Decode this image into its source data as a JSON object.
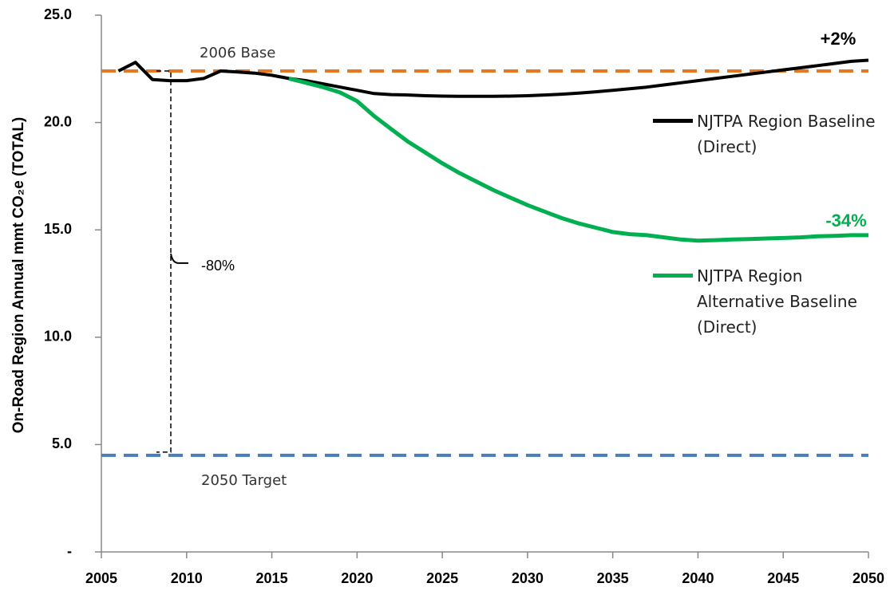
{
  "chart_data": {
    "type": "line",
    "y_label": "On-Road Region Annual mmt CO₂e (TOTAL)",
    "xlim": [
      2005,
      2050
    ],
    "xticks": [
      2005,
      2010,
      2015,
      2020,
      2025,
      2030,
      2035,
      2040,
      2045,
      2050
    ],
    "ylim": [
      0,
      25
    ],
    "yticks": [
      {
        "value": 0,
        "label": "-"
      },
      {
        "value": 5,
        "label": "5.0"
      },
      {
        "value": 10,
        "label": "10.0"
      },
      {
        "value": 15,
        "label": "15.0"
      },
      {
        "value": 20,
        "label": "20.0"
      },
      {
        "value": 25,
        "label": "25.0"
      }
    ],
    "series": [
      {
        "name": "NJTPA Region Baseline (Direct)",
        "color": "#000000",
        "x": [
          2006,
          2007,
          2008,
          2009,
          2010,
          2011,
          2012,
          2013,
          2014,
          2015,
          2016,
          2017,
          2018,
          2019,
          2020,
          2021,
          2022,
          2023,
          2024,
          2025,
          2026,
          2027,
          2028,
          2029,
          2030,
          2031,
          2032,
          2033,
          2034,
          2035,
          2036,
          2037,
          2038,
          2039,
          2040,
          2041,
          2042,
          2043,
          2044,
          2045,
          2046,
          2047,
          2048,
          2049,
          2050
        ],
        "values": [
          22.4,
          22.8,
          22.0,
          21.95,
          21.95,
          22.05,
          22.4,
          22.35,
          22.3,
          22.2,
          22.05,
          21.95,
          21.8,
          21.65,
          21.5,
          21.35,
          21.3,
          21.28,
          21.25,
          21.23,
          21.22,
          21.22,
          21.22,
          21.23,
          21.25,
          21.28,
          21.32,
          21.37,
          21.43,
          21.5,
          21.57,
          21.65,
          21.75,
          21.85,
          21.95,
          22.05,
          22.15,
          22.25,
          22.35,
          22.45,
          22.55,
          22.65,
          22.75,
          22.85,
          22.9
        ]
      },
      {
        "name": "NJTPA Region Alternative Baseline (Direct)",
        "color": "#00b050",
        "x": [
          2016,
          2017,
          2018,
          2019,
          2020,
          2021,
          2022,
          2023,
          2024,
          2025,
          2026,
          2027,
          2028,
          2029,
          2030,
          2031,
          2032,
          2033,
          2034,
          2035,
          2036,
          2037,
          2038,
          2039,
          2040,
          2041,
          2042,
          2043,
          2044,
          2045,
          2046,
          2047,
          2048,
          2049,
          2050
        ],
        "values": [
          22.05,
          21.85,
          21.65,
          21.4,
          21.0,
          20.3,
          19.7,
          19.1,
          18.6,
          18.1,
          17.65,
          17.25,
          16.85,
          16.5,
          16.15,
          15.85,
          15.55,
          15.3,
          15.1,
          14.9,
          14.8,
          14.75,
          14.65,
          14.55,
          14.5,
          14.52,
          14.55,
          14.57,
          14.6,
          14.62,
          14.65,
          14.7,
          14.72,
          14.75,
          14.75
        ]
      }
    ],
    "reference_lines": [
      {
        "label": "2006 Base",
        "value": 22.4,
        "color": "#e87722"
      },
      {
        "label": "2050 Target",
        "value": 4.5,
        "color": "#4a7ebb"
      }
    ],
    "annotations": [
      {
        "text": "+2%",
        "color": "#000000"
      },
      {
        "text": "-34%",
        "color": "#00b050"
      },
      {
        "text": "-80%",
        "color": "#000000"
      }
    ]
  }
}
